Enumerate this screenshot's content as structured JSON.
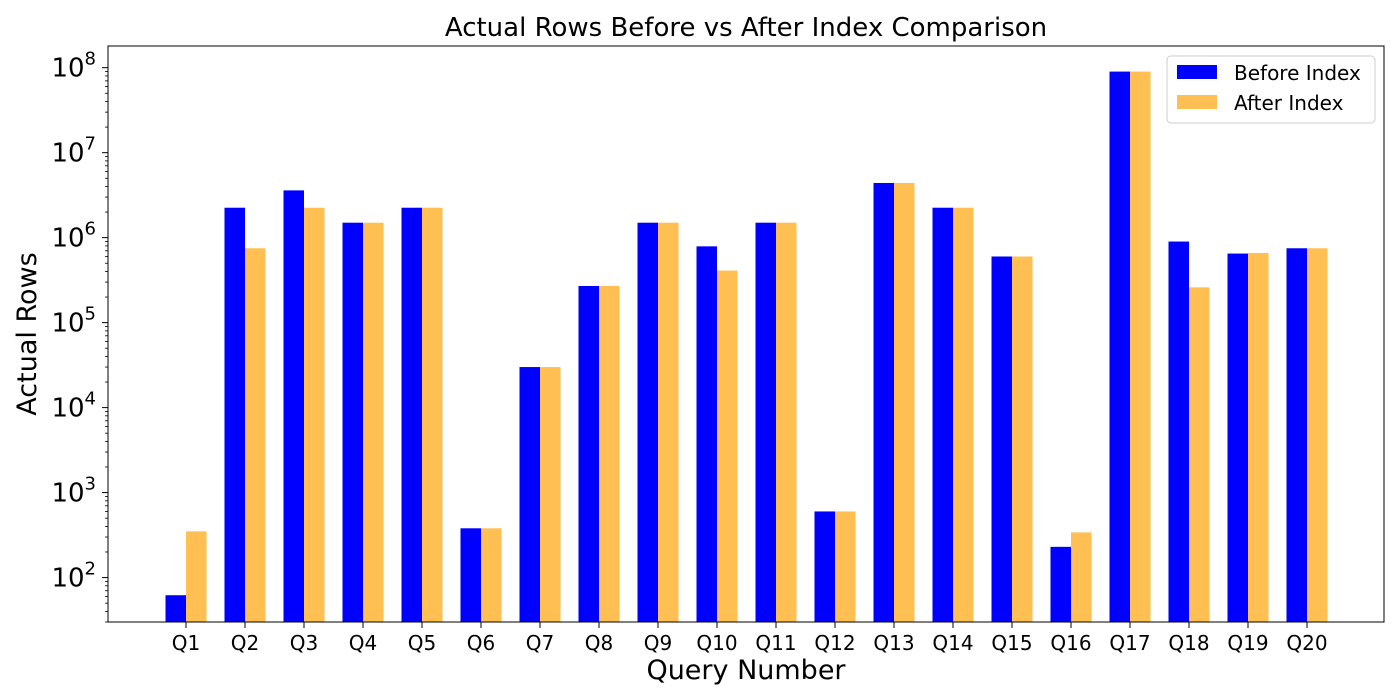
{
  "chart_data": {
    "type": "bar",
    "title": "Actual Rows Before vs After Index Comparison",
    "xlabel": "Query Number",
    "ylabel": "Actual Rows",
    "yscale": "log",
    "ylim": [
      30,
      180000000
    ],
    "ytick_values": [
      100,
      1000,
      10000,
      100000,
      1000000,
      10000000,
      100000000
    ],
    "ytick_labels": [
      {
        "base": "10",
        "exp": "2"
      },
      {
        "base": "10",
        "exp": "3"
      },
      {
        "base": "10",
        "exp": "4"
      },
      {
        "base": "10",
        "exp": "5"
      },
      {
        "base": "10",
        "exp": "6"
      },
      {
        "base": "10",
        "exp": "7"
      },
      {
        "base": "10",
        "exp": "8"
      }
    ],
    "categories": [
      "Q1",
      "Q2",
      "Q3",
      "Q4",
      "Q5",
      "Q6",
      "Q7",
      "Q8",
      "Q9",
      "Q10",
      "Q11",
      "Q12",
      "Q13",
      "Q14",
      "Q15",
      "Q16",
      "Q17",
      "Q18",
      "Q19",
      "Q20"
    ],
    "series": [
      {
        "name": "Before Index",
        "color": "#0000ff",
        "values": [
          62,
          2250000,
          3600000,
          1500000,
          2250000,
          380,
          30000,
          270000,
          1500000,
          790000,
          1500000,
          600,
          4400000,
          2250000,
          600000,
          230,
          90000000,
          900000,
          650000,
          750000
        ]
      },
      {
        "name": "After Index",
        "color": "#ffbf52",
        "values": [
          350,
          750000,
          2250000,
          1500000,
          2250000,
          380,
          30000,
          270000,
          1500000,
          410000,
          1500000,
          600,
          4400000,
          2250000,
          600000,
          340,
          90000000,
          260000,
          660000,
          750000
        ]
      }
    ],
    "legend_position": "top-right",
    "grid": false
  }
}
